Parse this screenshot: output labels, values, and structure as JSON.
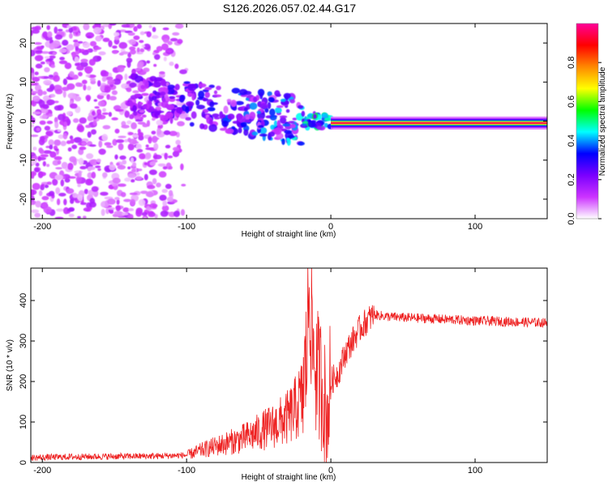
{
  "figure": {
    "title": "S126.2026.057.02.44.G17"
  },
  "chart_data": [
    {
      "type": "heatmap",
      "xlabel": "Height of straight line (km)",
      "ylabel": "Frequency (Hz)",
      "xlim": [
        -208,
        150
      ],
      "ylim": [
        -25,
        25
      ],
      "x_ticks": [
        -200,
        -100,
        0,
        100
      ],
      "y_ticks": [
        -20,
        -10,
        0,
        10,
        20
      ],
      "colorbar": {
        "label": "Normalized spectral amplitude",
        "range": [
          0,
          1
        ],
        "ticks": [
          0.0,
          0.2,
          0.4,
          0.6,
          0.8
        ],
        "tick_labels": [
          "0.0",
          "0.2",
          "0.4",
          "0.6",
          "0.8"
        ],
        "colors": [
          "#ffffff",
          "#cc33ff",
          "#7a00ff",
          "#0000ff",
          "#00ffff",
          "#00ff00",
          "#ffff00",
          "#ff8800",
          "#ff0000",
          "#ff0099"
        ]
      },
      "features": [
        {
          "x_range": [
            -208,
            -100
          ],
          "freq_range": [
            -25,
            25
          ],
          "amplitude": 0.1,
          "pattern": "scattered noise"
        },
        {
          "x_range": [
            -140,
            -20
          ],
          "freq_center": [
            7,
            0
          ],
          "freq_width": [
            6,
            8
          ],
          "amplitude": 0.25,
          "pattern": "descending blobs"
        },
        {
          "x_range": [
            -20,
            0
          ],
          "freq_center": 0,
          "freq_width": 2,
          "amplitude": 0.4,
          "pattern": "transition"
        },
        {
          "x_range": [
            0,
            150
          ],
          "freq_center": -0.5,
          "freq_width": 1,
          "amplitude": 1.0,
          "pattern": "narrow carrier line"
        }
      ]
    },
    {
      "type": "line",
      "xlabel": "Height of straight line (km)",
      "ylabel": "SNR (10 * v/v)",
      "xlim": [
        -208,
        150
      ],
      "ylim": [
        0,
        480
      ],
      "x_ticks": [
        -200,
        -100,
        0,
        100
      ],
      "y_ticks": [
        0,
        100,
        200,
        300,
        400
      ],
      "color": "#ee2222",
      "x": [
        -208,
        -180,
        -150,
        -120,
        -100,
        -90,
        -80,
        -70,
        -60,
        -50,
        -40,
        -30,
        -25,
        -20,
        -17,
        -15,
        -13,
        -10,
        -7,
        -5,
        -3,
        0,
        5,
        10,
        15,
        20,
        25,
        30,
        40,
        50,
        70,
        100,
        120,
        150
      ],
      "y": [
        12,
        14,
        15,
        16,
        18,
        30,
        40,
        50,
        60,
        75,
        90,
        110,
        130,
        160,
        250,
        440,
        300,
        220,
        200,
        180,
        100,
        200,
        220,
        270,
        300,
        330,
        350,
        365,
        360,
        358,
        355,
        350,
        348,
        345
      ]
    }
  ]
}
